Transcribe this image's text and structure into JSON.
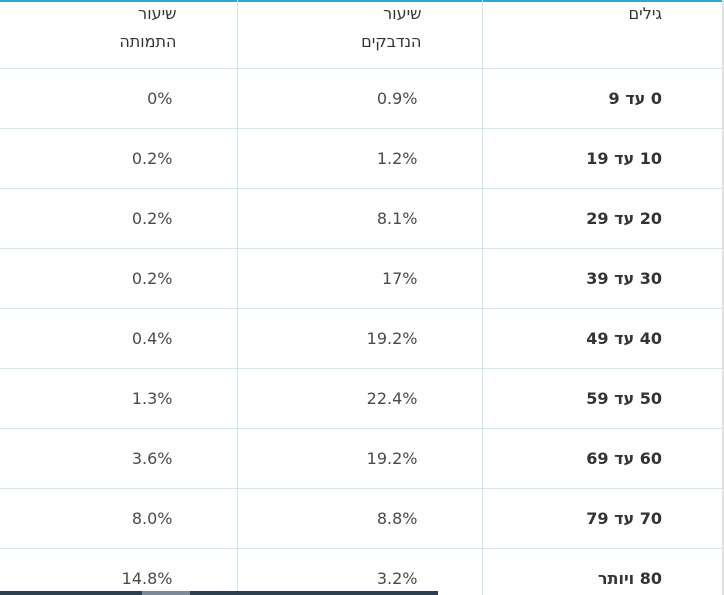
{
  "table": {
    "headers": {
      "age": "גילים",
      "infection_line1": "שיעור",
      "infection_line2": "הנדבקים",
      "mortality_line1": "שיעור",
      "mortality_line2": "התמותה"
    },
    "rows": [
      {
        "age": "0 עד 9",
        "infection": "0.9%",
        "mortality": "0%"
      },
      {
        "age": "10 עד 19",
        "infection": "1.2%",
        "mortality": "0.2%"
      },
      {
        "age": "20 עד 29",
        "infection": "8.1%",
        "mortality": "0.2%"
      },
      {
        "age": "30 עד 39",
        "infection": "17%",
        "mortality": "0.2%"
      },
      {
        "age": "40 עד 49",
        "infection": "19.2%",
        "mortality": "0.4%"
      },
      {
        "age": "50 עד 59",
        "infection": "22.4%",
        "mortality": "1.3%"
      },
      {
        "age": "60 עד 69",
        "infection": "19.2%",
        "mortality": "3.6%"
      },
      {
        "age": "70 עד 79",
        "infection": "8.8%",
        "mortality": "8.0%"
      },
      {
        "age": "80 ויותר",
        "infection": "3.2%",
        "mortality": "14.8%"
      }
    ]
  },
  "colors": {
    "accent_line": "#29a9d9",
    "grid": "#cde7f0",
    "scrollbar": "#2c3e50"
  }
}
